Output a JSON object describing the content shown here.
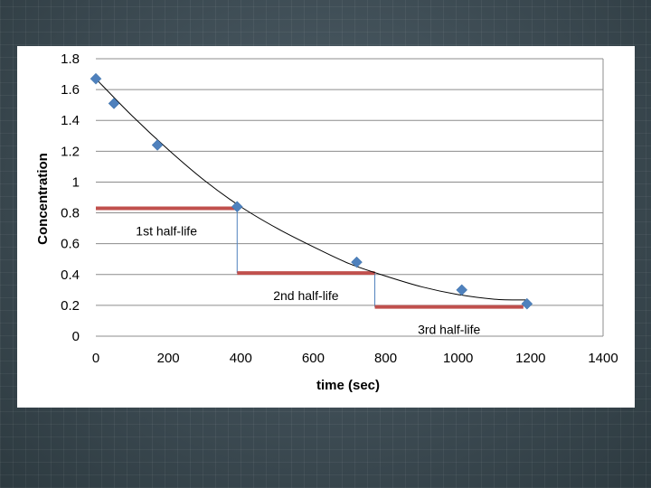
{
  "chart_data": {
    "type": "scatter",
    "xlabel": "time (sec)",
    "ylabel": "Concentration",
    "xlim": [
      0,
      1400
    ],
    "ylim": [
      0,
      1.8
    ],
    "xticks": [
      0,
      200,
      400,
      600,
      800,
      1000,
      1200,
      1400
    ],
    "yticks": [
      0,
      0.2,
      0.4,
      0.6,
      0.8,
      1,
      1.2,
      1.4,
      1.6,
      1.8
    ],
    "ytick_labels": [
      "0",
      "0.2",
      "0.4",
      "0.6",
      "0.8",
      "1",
      "1.2",
      "1.4",
      "1.6",
      "1.8"
    ],
    "grid": true,
    "points": {
      "x": [
        0,
        50,
        170,
        390,
        720,
        1010,
        1190
      ],
      "y": [
        1.67,
        1.51,
        1.24,
        0.84,
        0.48,
        0.3,
        0.21
      ]
    },
    "trendline": {
      "x": [
        0,
        100,
        200,
        300,
        400,
        500,
        600,
        700,
        800,
        900,
        1000,
        1100,
        1190
      ],
      "y": [
        1.67,
        1.43,
        1.21,
        1.01,
        0.84,
        0.7,
        0.58,
        0.47,
        0.39,
        0.32,
        0.27,
        0.24,
        0.235
      ]
    },
    "half_lives": [
      {
        "label": "1st half-life",
        "x_start": 0,
        "x_end": 390,
        "level": 0.83
      },
      {
        "label": "2nd half-life",
        "x_start": 390,
        "x_end": 770,
        "level": 0.41
      },
      {
        "label": "3rd half-life",
        "x_start": 770,
        "x_end": 1180,
        "level": 0.19
      }
    ],
    "colors": {
      "marker": "#4f81bd",
      "half_life_bar": "#c0504d",
      "drop_line": "#4f81bd",
      "trendline": "#000000",
      "grid": "#8c8c8c",
      "slide_background": "#3b4a52",
      "chart_background": "#ffffff"
    }
  }
}
